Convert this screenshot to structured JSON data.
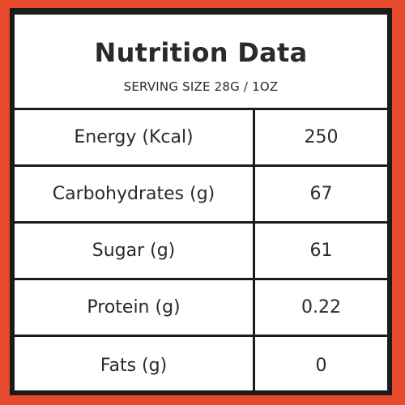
{
  "title": "Nutrition Data",
  "serving": "SERVING SIZE 28G / 1OZ",
  "rows": [
    {
      "label": "Energy (Kcal)",
      "value": "250"
    },
    {
      "label": "Carbohydrates (g)",
      "value": "67"
    },
    {
      "label": "Sugar (g)",
      "value": "61"
    },
    {
      "label": "Protein (g)",
      "value": "0.22"
    },
    {
      "label": "Fats (g)",
      "value": "0"
    }
  ],
  "colors": {
    "background": "#e54a2c",
    "panel": "#ffffff",
    "border": "#1b1b1b",
    "text": "#2a2a2a"
  }
}
